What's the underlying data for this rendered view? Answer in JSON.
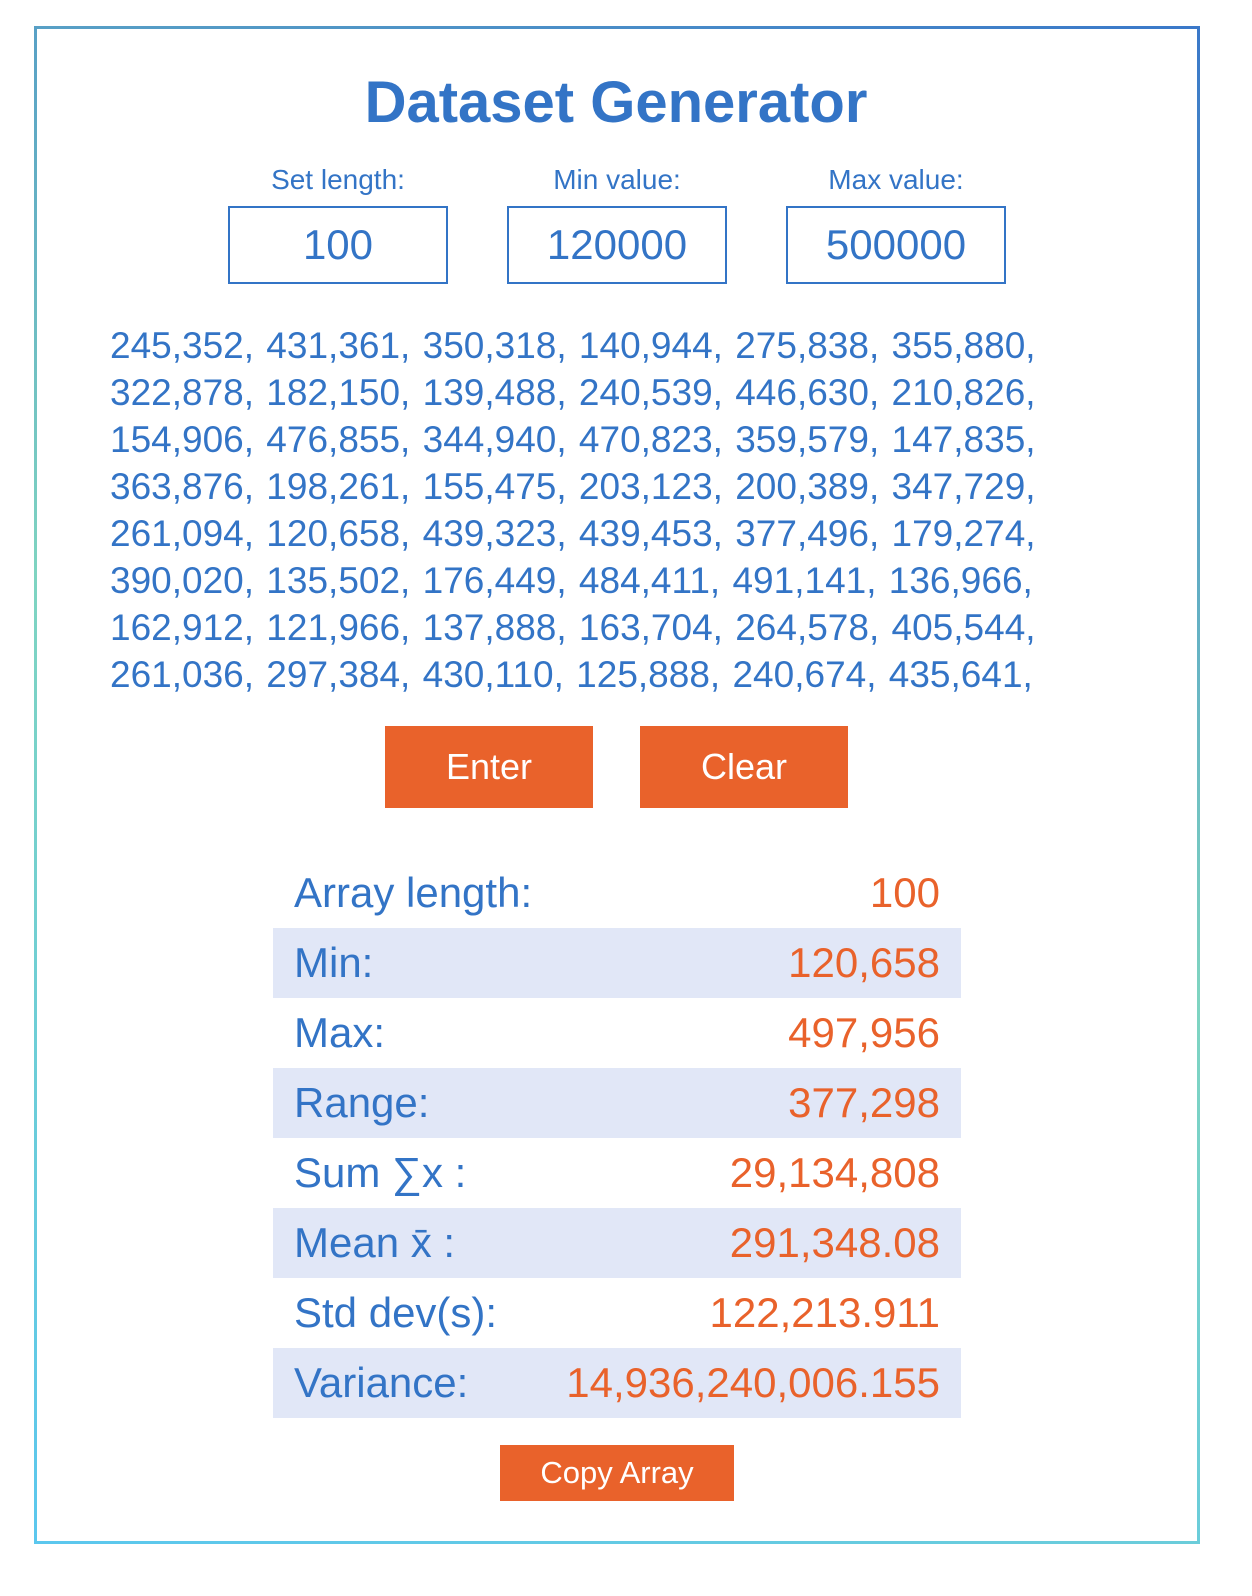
{
  "title": "Dataset Generator",
  "inputs": {
    "set_length": {
      "label": "Set length:",
      "value": "100"
    },
    "min_value": {
      "label": "Min value:",
      "value": "120000"
    },
    "max_value": {
      "label": "Max value:",
      "value": "500000"
    }
  },
  "dataset_text": "245,352, 431,361, 350,318, 140,944, 275,838, 355,880, 322,878, 182,150, 139,488, 240,539, 446,630, 210,826, 154,906, 476,855, 344,940, 470,823, 359,579, 147,835, 363,876, 198,261, 155,475, 203,123, 200,389, 347,729, 261,094, 120,658, 439,323, 439,453, 377,496, 179,274, 390,020, 135,502, 176,449, 484,411, 491,141, 136,966, 162,912, 121,966, 137,888, 163,704, 264,578, 405,544, 261,036, 297,384, 430,110, 125,888, 240,674, 435,641,",
  "buttons": {
    "enter": "Enter",
    "clear": "Clear",
    "copy": "Copy Array"
  },
  "stats": [
    {
      "label": "Array length:",
      "value": "100"
    },
    {
      "label": "Min:",
      "value": "120,658"
    },
    {
      "label": "Max:",
      "value": "497,956"
    },
    {
      "label": "Range:",
      "value": "377,298"
    },
    {
      "label": "Sum ∑x :",
      "value": "29,134,808"
    },
    {
      "label": "Mean x̄ :",
      "value": "291,348.08"
    },
    {
      "label": "Std dev(s):",
      "value": "122,213.911"
    },
    {
      "label": "Variance:",
      "value": "14,936,240,006.155"
    }
  ],
  "colors": {
    "primary_blue": "#3374c6",
    "accent_orange": "#e9622b",
    "row_alt": "#e1e7f7"
  }
}
